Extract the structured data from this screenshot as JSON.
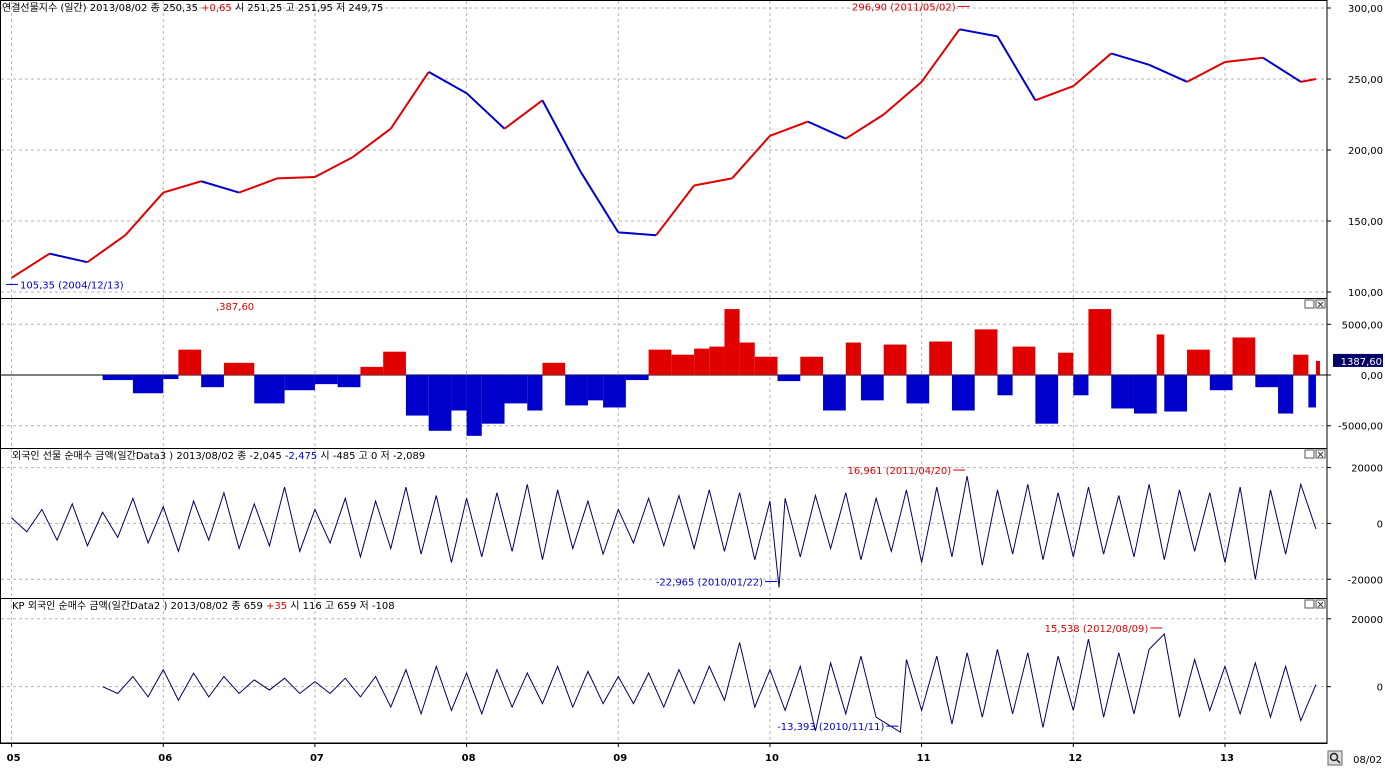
{
  "colors": {
    "up": "#e00000",
    "down": "#0000cc",
    "line": "#000066",
    "grid": "#b4b4b4",
    "black": "#000000"
  },
  "panels": [
    {
      "header_parts": [
        {
          "text": "연결선물지수 (일간) 2013/08/02   종 250,35 ",
          "color": "black"
        },
        {
          "text": "+0,65",
          "color": "up"
        },
        {
          "text": "  시 251,25 고 251,95 저 249,75",
          "color": "black"
        }
      ],
      "y_ticks": [
        "300,00",
        "250,00",
        "200,00",
        "150,00",
        "100,00"
      ],
      "annotations": [
        {
          "text": "296,90 (2011/05/02)",
          "color": "up"
        },
        {
          "text": "105,35 (2004/12/13)",
          "color": "down"
        }
      ]
    },
    {
      "header_parts": [],
      "y_ticks": [
        "5000,00",
        "0,00",
        "-5000,00"
      ],
      "annotations": [
        {
          "text": ",387,60",
          "color": "up"
        }
      ],
      "last_value": "1387,60"
    },
    {
      "header_parts": [
        {
          "text": "외국인 선물 순매수 금액(일간Data3 ) 2013/08/02   종 -2,045 ",
          "color": "black"
        },
        {
          "text": "-2,475",
          "color": "down"
        },
        {
          "text": "  시 -485 고 0 저 -2,089",
          "color": "black"
        }
      ],
      "y_ticks": [
        "20000",
        "0",
        "-20000"
      ],
      "annotations": [
        {
          "text": "16,961 (2011/04/20)",
          "color": "up"
        },
        {
          "text": "-22,965 (2010/01/22)",
          "color": "down"
        }
      ]
    },
    {
      "header_parts": [
        {
          "text": "KP 외국인 순매수 금액(일간Data2 ) 2013/08/02   종 659 ",
          "color": "black"
        },
        {
          "text": "+35",
          "color": "up"
        },
        {
          "text": "  시 116 고 659 저 -108",
          "color": "black"
        }
      ],
      "y_ticks": [
        "20000",
        "0"
      ],
      "annotations": [
        {
          "text": "15,538 (2012/08/09)",
          "color": "up"
        },
        {
          "text": "-13,393 (2010/11/11)",
          "color": "down"
        }
      ]
    }
  ],
  "x_ticks": [
    "05",
    "06",
    "07",
    "08",
    "09",
    "10",
    "11",
    "12",
    "13"
  ],
  "corner_label": "08/02",
  "chart_data": [
    {
      "type": "line",
      "ylim": [
        100,
        300
      ],
      "x": [
        2005.0,
        2005.25,
        2005.5,
        2005.75,
        2006.0,
        2006.25,
        2006.5,
        2006.75,
        2007.0,
        2007.25,
        2007.5,
        2007.75,
        2008.0,
        2008.25,
        2008.5,
        2008.75,
        2009.0,
        2009.25,
        2009.5,
        2009.75,
        2010.0,
        2010.25,
        2010.5,
        2010.75,
        2011.0,
        2011.25,
        2011.5,
        2011.75,
        2012.0,
        2012.25,
        2012.5,
        2012.75,
        2013.0,
        2013.25,
        2013.5,
        2013.6
      ],
      "series": [
        {
          "values": [
            110,
            127,
            121,
            140,
            170,
            178,
            170,
            180,
            181,
            195,
            215,
            255,
            240,
            215,
            235,
            185,
            142,
            140,
            175,
            180,
            210,
            220,
            208,
            225,
            248,
            285,
            280,
            235,
            245,
            268,
            260,
            248,
            262,
            265,
            248,
            250
          ]
        }
      ],
      "annotations": [
        {
          "x": 2011.33,
          "y": 296.9,
          "label": "296,90 (2011/05/02)"
        },
        {
          "x": 2004.95,
          "y": 105.35,
          "label": "105,35 (2004/12/13)"
        }
      ]
    },
    {
      "type": "bar",
      "ylim": [
        -7000,
        7000
      ],
      "y_ticks": [
        5000,
        0,
        -5000
      ],
      "x": [
        2005.6,
        2005.8,
        2006.0,
        2006.1,
        2006.25,
        2006.4,
        2006.6,
        2006.8,
        2007.0,
        2007.15,
        2007.3,
        2007.45,
        2007.6,
        2007.75,
        2007.9,
        2008.0,
        2008.1,
        2008.25,
        2008.4,
        2008.5,
        2008.65,
        2008.8,
        2008.9,
        2009.05,
        2009.2,
        2009.35,
        2009.5,
        2009.6,
        2009.7,
        2009.8,
        2009.9,
        2010.05,
        2010.2,
        2010.35,
        2010.5,
        2010.6,
        2010.75,
        2010.9,
        2011.05,
        2011.2,
        2011.35,
        2011.5,
        2011.6,
        2011.75,
        2011.9,
        2012.0,
        2012.1,
        2012.25,
        2012.4,
        2012.55,
        2012.6,
        2012.75,
        2012.9,
        2013.05,
        2013.2,
        2013.35,
        2013.45,
        2013.55,
        2013.6
      ],
      "series": [
        {
          "values": [
            -500,
            -1800,
            -400,
            2500,
            -1200,
            1200,
            -2800,
            -1500,
            -900,
            -1200,
            800,
            2300,
            -4000,
            -5500,
            -3500,
            -6000,
            -4800,
            -2800,
            -3500,
            1200,
            -3000,
            -2500,
            -3200,
            -500,
            2500,
            2000,
            2600,
            2800,
            6500,
            3200,
            1800,
            -600,
            1800,
            -3500,
            3200,
            -2500,
            3000,
            -2800,
            3300,
            -3500,
            4500,
            -2000,
            2800,
            -4800,
            2200,
            -2000,
            6500,
            -3300,
            -3800,
            4000,
            -3600,
            2500,
            -1500,
            3700,
            -1200,
            -3800,
            2000,
            -3200,
            1388
          ]
        }
      ]
    },
    {
      "type": "line",
      "ylim": [
        -26000,
        22000
      ],
      "y_ticks": [
        20000,
        0,
        -20000
      ],
      "x": [
        2005.0,
        2005.1,
        2005.2,
        2005.3,
        2005.4,
        2005.5,
        2005.6,
        2005.7,
        2005.8,
        2005.9,
        2006.0,
        2006.1,
        2006.2,
        2006.3,
        2006.4,
        2006.5,
        2006.6,
        2006.7,
        2006.8,
        2006.9,
        2007.0,
        2007.1,
        2007.2,
        2007.3,
        2007.4,
        2007.5,
        2007.6,
        2007.7,
        2007.8,
        2007.9,
        2008.0,
        2008.1,
        2008.2,
        2008.3,
        2008.4,
        2008.5,
        2008.6,
        2008.7,
        2008.8,
        2008.9,
        2009.0,
        2009.1,
        2009.2,
        2009.3,
        2009.4,
        2009.5,
        2009.6,
        2009.7,
        2009.8,
        2009.9,
        2010.0,
        2010.06,
        2010.1,
        2010.2,
        2010.3,
        2010.4,
        2010.5,
        2010.6,
        2010.7,
        2010.8,
        2010.9,
        2011.0,
        2011.1,
        2011.2,
        2011.3,
        2011.4,
        2011.5,
        2011.6,
        2011.7,
        2011.8,
        2011.9,
        2012.0,
        2012.1,
        2012.2,
        2012.3,
        2012.4,
        2012.5,
        2012.6,
        2012.7,
        2012.8,
        2012.9,
        2013.0,
        2013.1,
        2013.2,
        2013.3,
        2013.4,
        2013.5,
        2013.6
      ],
      "series": [
        {
          "values": [
            2000,
            -3000,
            5000,
            -6000,
            7000,
            -8000,
            4000,
            -5000,
            9000,
            -7000,
            6000,
            -10000,
            8000,
            -6000,
            11000,
            -9000,
            7000,
            -8000,
            13000,
            -10000,
            5000,
            -7000,
            9000,
            -12000,
            8000,
            -9000,
            13000,
            -11000,
            10000,
            -14000,
            9000,
            -12000,
            11000,
            -10000,
            14000,
            -13000,
            12000,
            -9000,
            8000,
            -11000,
            5000,
            -7000,
            9000,
            -8000,
            10000,
            -9000,
            12000,
            -10000,
            11000,
            -13000,
            8000,
            -22965,
            9000,
            -12000,
            10000,
            -9000,
            11000,
            -13000,
            9000,
            -10000,
            12000,
            -14000,
            13000,
            -12000,
            16961,
            -15000,
            12000,
            -11000,
            14000,
            -13000,
            11000,
            -12000,
            13000,
            -11000,
            10000,
            -12000,
            14000,
            -13000,
            12000,
            -10000,
            11000,
            -14000,
            13000,
            -20000,
            12000,
            -11000,
            14000,
            -2045
          ]
        }
      ],
      "annotations": [
        {
          "x": 2011.3,
          "y": 16961,
          "label": "16,961 (2011/04/20)"
        },
        {
          "x": 2010.06,
          "y": -22965,
          "label": "-22,965 (2010/01/22)"
        }
      ]
    },
    {
      "type": "line",
      "ylim": [
        -16000,
        22000
      ],
      "y_ticks": [
        20000,
        0
      ],
      "x": [
        2005.6,
        2005.7,
        2005.8,
        2005.9,
        2006.0,
        2006.1,
        2006.2,
        2006.3,
        2006.4,
        2006.5,
        2006.6,
        2006.7,
        2006.8,
        2006.9,
        2007.0,
        2007.1,
        2007.2,
        2007.3,
        2007.4,
        2007.5,
        2007.6,
        2007.7,
        2007.8,
        2007.9,
        2008.0,
        2008.1,
        2008.2,
        2008.3,
        2008.4,
        2008.5,
        2008.6,
        2008.7,
        2008.8,
        2008.9,
        2009.0,
        2009.1,
        2009.2,
        2009.3,
        2009.4,
        2009.5,
        2009.6,
        2009.7,
        2009.8,
        2009.9,
        2010.0,
        2010.1,
        2010.2,
        2010.3,
        2010.4,
        2010.5,
        2010.6,
        2010.7,
        2010.86,
        2010.9,
        2011.0,
        2011.1,
        2011.2,
        2011.3,
        2011.4,
        2011.5,
        2011.6,
        2011.7,
        2011.8,
        2011.9,
        2012.0,
        2012.1,
        2012.2,
        2012.3,
        2012.4,
        2012.5,
        2012.6,
        2012.7,
        2012.8,
        2012.9,
        2013.0,
        2013.1,
        2013.2,
        2013.3,
        2013.4,
        2013.5,
        2013.6
      ],
      "series": [
        {
          "values": [
            0,
            -2000,
            3000,
            -3000,
            5000,
            -4000,
            4000,
            -3000,
            3000,
            -2000,
            2000,
            -1000,
            2500,
            -2000,
            1500,
            -2000,
            2500,
            -3000,
            3000,
            -6000,
            5000,
            -8000,
            6000,
            -7000,
            4000,
            -8000,
            5000,
            -6000,
            4000,
            -5000,
            6000,
            -6000,
            4500,
            -5000,
            3000,
            -5000,
            4000,
            -6000,
            5000,
            -5000,
            6000,
            -4000,
            13000,
            -6000,
            5000,
            -7000,
            6000,
            -13000,
            7000,
            -8000,
            9000,
            -9000,
            -13393,
            8000,
            -7000,
            9000,
            -11000,
            10000,
            -9000,
            11000,
            -8000,
            10000,
            -12000,
            9000,
            -7000,
            14000,
            -9000,
            10000,
            -8000,
            11000,
            15538,
            -9000,
            8000,
            -7000,
            6000,
            -8000,
            7000,
            -9000,
            6000,
            -10000,
            659
          ]
        }
      ],
      "annotations": [
        {
          "x": 2012.6,
          "y": 15538,
          "label": "15,538 (2012/08/09)"
        },
        {
          "x": 2010.86,
          "y": -13393,
          "label": "-13,393 (2010/11/11)"
        }
      ]
    }
  ]
}
